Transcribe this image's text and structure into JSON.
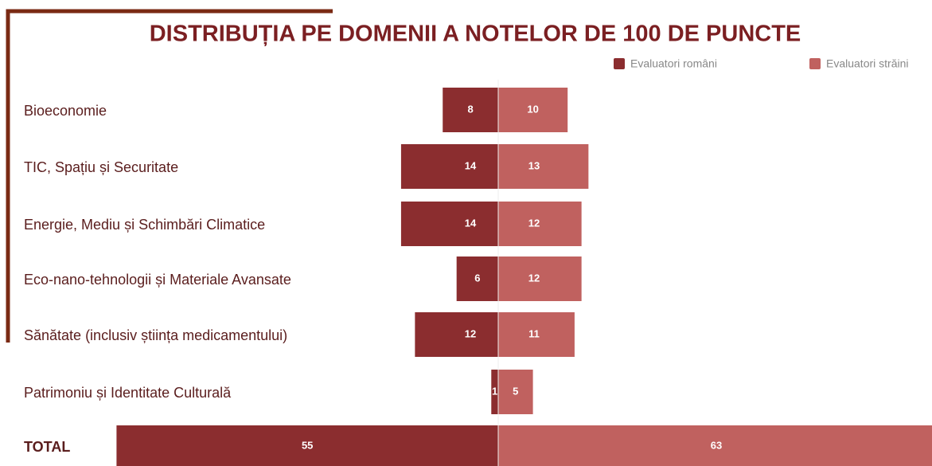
{
  "chart_data": {
    "type": "diverging-bar",
    "title": "DISTRIBUȚIA PE DOMENII A NOTELOR DE 100 DE PUNCTE",
    "categories": [
      "Bioeconomie",
      "TIC, Spațiu și Securitate",
      "Energie, Mediu și Schimbări Climatice",
      "Eco-nano-tehnologii și Materiale Avansate",
      "Sănătate (inclusiv știința medicamentului)",
      "Patrimoniu și Identitate Culturală",
      "TOTAL"
    ],
    "series": [
      {
        "name": "Evaluatori români",
        "color": "#8b2d2f",
        "values": [
          8,
          14,
          14,
          6,
          12,
          1,
          55
        ]
      },
      {
        "name": "Evaluatori străini",
        "color": "#c0615f",
        "values": [
          10,
          13,
          12,
          12,
          11,
          5,
          63
        ]
      }
    ],
    "legend": "top-right"
  }
}
